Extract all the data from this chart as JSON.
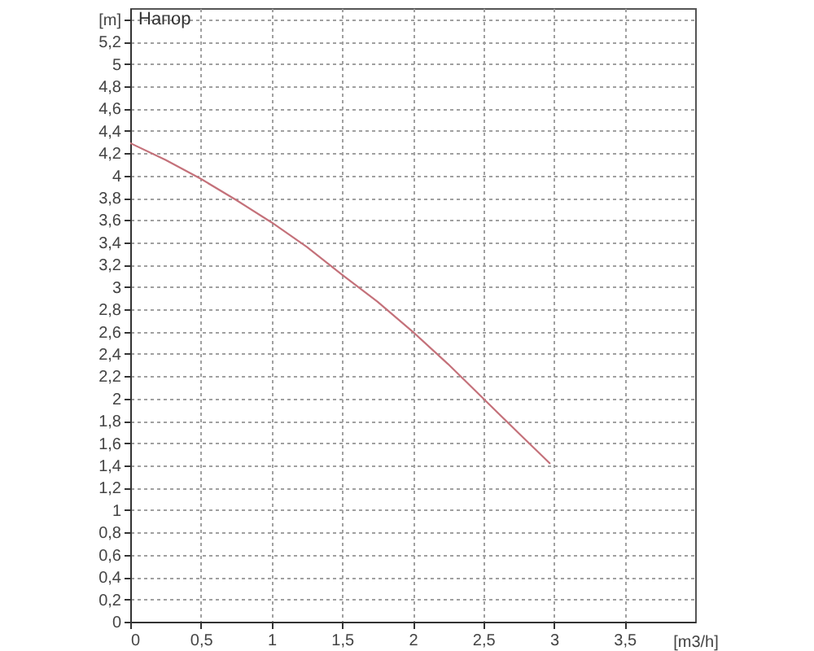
{
  "chart_data": {
    "type": "line",
    "title": "Напор",
    "xlabel": "[m3/h]",
    "ylabel": "[m]",
    "x": [
      0,
      0.25,
      0.5,
      0.75,
      1,
      1.25,
      1.5,
      1.75,
      2,
      2.25,
      2.5,
      2.75,
      2.97
    ],
    "series": [
      {
        "color": "#c4717a",
        "values": [
          4.29,
          4.14,
          3.97,
          3.78,
          3.58,
          3.36,
          3.11,
          2.87,
          2.6,
          2.31,
          2.0,
          1.69,
          1.42
        ]
      }
    ],
    "xlim": [
      0,
      4
    ],
    "ylim": [
      0,
      5.5
    ],
    "xticks": [
      0,
      {
        "value": 0.5,
        "label": "0,5"
      },
      1,
      {
        "value": 1.5,
        "label": "1,5"
      },
      2,
      {
        "value": 2.5,
        "label": "2,5"
      },
      3,
      {
        "value": 3.5,
        "label": "3,5"
      }
    ],
    "yticks": [
      0,
      {
        "value": 0.2,
        "label": "0,2"
      },
      {
        "value": 0.4,
        "label": "0,4"
      },
      {
        "value": 0.6,
        "label": "0,6"
      },
      {
        "value": 0.8,
        "label": "0,8"
      },
      1,
      {
        "value": 1.2,
        "label": "1,2"
      },
      {
        "value": 1.4,
        "label": "1,4"
      },
      {
        "value": 1.6,
        "label": "1,6"
      },
      {
        "value": 1.8,
        "label": "1,8"
      },
      2,
      {
        "value": 2.2,
        "label": "2,2"
      },
      {
        "value": 2.4,
        "label": "2,4"
      },
      {
        "value": 2.6,
        "label": "2,6"
      },
      {
        "value": 2.8,
        "label": "2,8"
      },
      3,
      {
        "value": 3.2,
        "label": "3,2"
      },
      {
        "value": 3.4,
        "label": "3,4"
      },
      {
        "value": 3.6,
        "label": "3,6"
      },
      {
        "value": 3.8,
        "label": "3,8"
      },
      4,
      {
        "value": 4.2,
        "label": "4,2"
      },
      {
        "value": 4.4,
        "label": "4,4"
      },
      {
        "value": 4.6,
        "label": "4,6"
      },
      {
        "value": 4.8,
        "label": "4,8"
      },
      5,
      {
        "value": 5.2,
        "label": "5,2"
      },
      {
        "value": 5.4,
        "label": null
      }
    ],
    "grid": true,
    "line_style": "solid"
  }
}
